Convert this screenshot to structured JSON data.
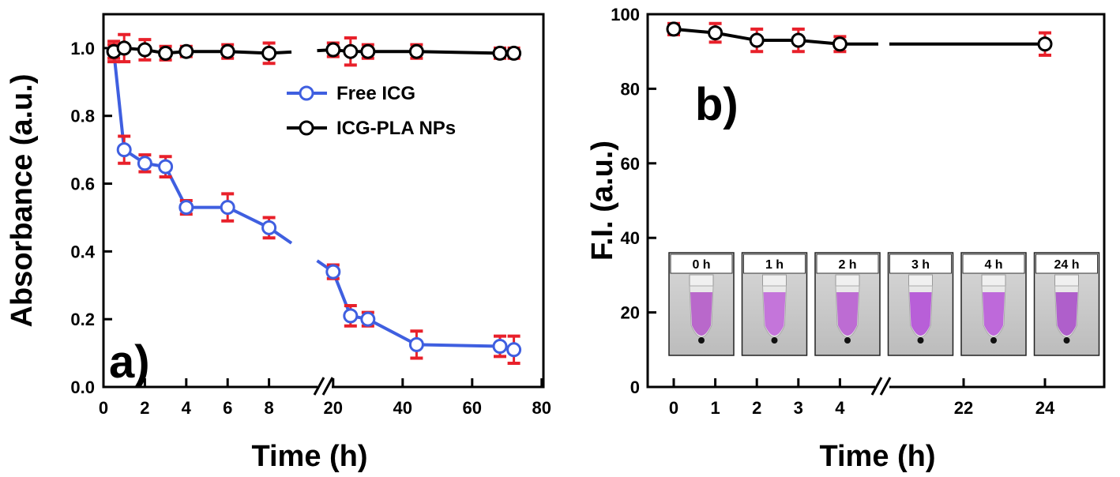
{
  "chart_data": [
    {
      "type": "line",
      "panel_label": "a)",
      "xlabel": "Time (h)",
      "ylabel": "Absorbance (a.u.)",
      "axis_break": true,
      "x_segments": [
        {
          "range": [
            0,
            10
          ],
          "ticks": [
            0,
            2,
            4,
            6,
            8
          ]
        },
        {
          "range": [
            18,
            80
          ],
          "ticks": [
            20,
            40,
            60,
            80
          ]
        }
      ],
      "ylim": [
        0,
        1.1
      ],
      "yticks": [
        "0.0",
        "0.2",
        "0.4",
        "0.6",
        "0.8",
        "1.0"
      ],
      "ytick_values": [
        0,
        0.2,
        0.4,
        0.6,
        0.8,
        1.0
      ],
      "legend_position": "upper-center",
      "series": [
        {
          "name": "Free ICG",
          "color": "#3f5fe0",
          "marker": "open-circle",
          "errorbar_color": "#e8202a",
          "x": [
            0.5,
            1,
            2,
            3,
            4,
            6,
            8,
            20,
            25,
            30,
            44,
            68,
            72
          ],
          "y": [
            0.99,
            0.7,
            0.66,
            0.65,
            0.53,
            0.53,
            0.47,
            0.34,
            0.21,
            0.2,
            0.125,
            0.12,
            0.11
          ],
          "err": [
            0.03,
            0.04,
            0.025,
            0.03,
            0.02,
            0.04,
            0.03,
            0.02,
            0.03,
            0.02,
            0.04,
            0.03,
            0.04
          ],
          "line_break_after_index": 6
        },
        {
          "name": "ICG-PLA NPs",
          "color": "#000000",
          "marker": "open-circle",
          "errorbar_color": "#e8202a",
          "x": [
            0.5,
            1,
            2,
            3,
            4,
            6,
            8,
            20,
            25,
            30,
            44,
            68,
            72
          ],
          "y": [
            0.99,
            1.0,
            0.995,
            0.985,
            0.99,
            0.99,
            0.985,
            0.995,
            0.99,
            0.99,
            0.99,
            0.985,
            0.985
          ],
          "err": [
            0.02,
            0.04,
            0.03,
            0.02,
            0.015,
            0.02,
            0.03,
            0.02,
            0.04,
            0.02,
            0.02,
            0.015,
            0.015
          ],
          "line_break_after_index": 6
        }
      ]
    },
    {
      "type": "line",
      "panel_label": "b)",
      "xlabel": "Time (h)",
      "ylabel": "F.I. (a.u.)",
      "axis_break": true,
      "xtick_labels": [
        "0",
        "1",
        "2",
        "3",
        "4",
        "22",
        "24"
      ],
      "xtick_values": [
        0,
        1,
        2,
        3,
        4,
        22,
        24
      ],
      "ylim": [
        0,
        100
      ],
      "yticks": [
        "0",
        "20",
        "40",
        "60",
        "80",
        "100"
      ],
      "ytick_values": [
        0,
        20,
        40,
        60,
        80,
        100
      ],
      "series": [
        {
          "color": "#000000",
          "marker": "open-circle",
          "errorbar_color": "#e8202a",
          "x": [
            0,
            1,
            2,
            3,
            4,
            24
          ],
          "y": [
            96,
            95,
            93,
            93,
            92,
            92
          ],
          "err": [
            1.5,
            2.5,
            3,
            3,
            2,
            3
          ]
        }
      ],
      "inset_tubes": [
        {
          "label": "0 h",
          "fill": "#b45ac8"
        },
        {
          "label": "1 h",
          "fill": "#c068d8"
        },
        {
          "label": "2 h",
          "fill": "#b85ed0"
        },
        {
          "label": "3 h",
          "fill": "#b250d6"
        },
        {
          "label": "4 h",
          "fill": "#b95bd8"
        },
        {
          "label": "24 h",
          "fill": "#a850c8"
        }
      ]
    }
  ]
}
